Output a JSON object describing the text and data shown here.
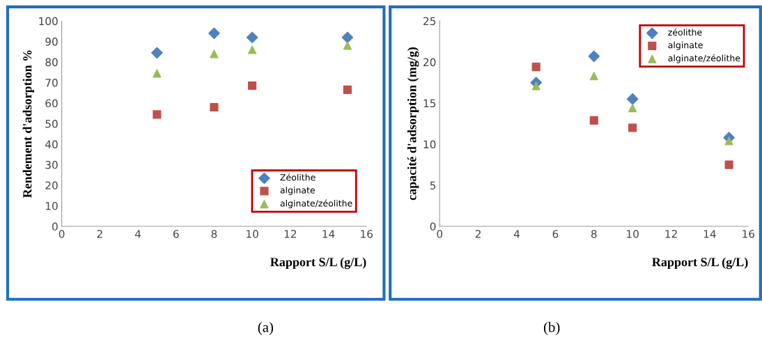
{
  "chart_data": [
    {
      "type": "scatter",
      "xlabel": "Rapport S/L (g/L)",
      "ylabel": "Rendement d'adsorption %",
      "x": [
        5,
        8,
        10,
        15
      ],
      "xlim": [
        0,
        16
      ],
      "xticks": [
        0,
        2,
        4,
        6,
        8,
        10,
        12,
        14,
        16
      ],
      "ylim": [
        0,
        100
      ],
      "yticks": [
        0,
        10,
        20,
        30,
        40,
        50,
        60,
        70,
        80,
        90,
        100
      ],
      "grid": false,
      "legend": "bottom right",
      "annotations": [
        "(a)"
      ],
      "series": [
        {
          "name": "Zéolithe",
          "color": "#4f81bd",
          "marker": "diamond",
          "values": [
            84.5,
            94,
            92,
            92
          ]
        },
        {
          "name": "alginate",
          "color": "#c0504d",
          "marker": "square",
          "values": [
            54.5,
            58,
            68.5,
            66.5
          ]
        },
        {
          "name": "alginate/zéolithe",
          "color": "#9bbb59",
          "marker": "triangle",
          "values": [
            74.5,
            84,
            86,
            88
          ]
        }
      ]
    },
    {
      "type": "scatter",
      "xlabel": "Rapport S/L (g/L)",
      "ylabel": "capacité d'adsorption (mg/g)",
      "x": [
        5,
        8,
        10,
        15
      ],
      "xlim": [
        0,
        16
      ],
      "xticks": [
        0,
        2,
        4,
        6,
        8,
        10,
        12,
        14,
        16
      ],
      "ylim": [
        0,
        25
      ],
      "yticks": [
        0,
        5,
        10,
        15,
        20,
        25
      ],
      "grid": false,
      "legend": "top right",
      "annotations": [
        "(b)"
      ],
      "series": [
        {
          "name": "zéolithe",
          "color": "#4f81bd",
          "marker": "diamond",
          "values": [
            17.5,
            20.7,
            15.5,
            10.8
          ]
        },
        {
          "name": "alginate",
          "color": "#c0504d",
          "marker": "square",
          "values": [
            19.4,
            12.9,
            12.0,
            7.5
          ]
        },
        {
          "name": "alginate/zéolithe",
          "color": "#9bbb59",
          "marker": "triangle",
          "values": [
            17.1,
            18.3,
            14.4,
            10.4
          ]
        }
      ]
    }
  ]
}
